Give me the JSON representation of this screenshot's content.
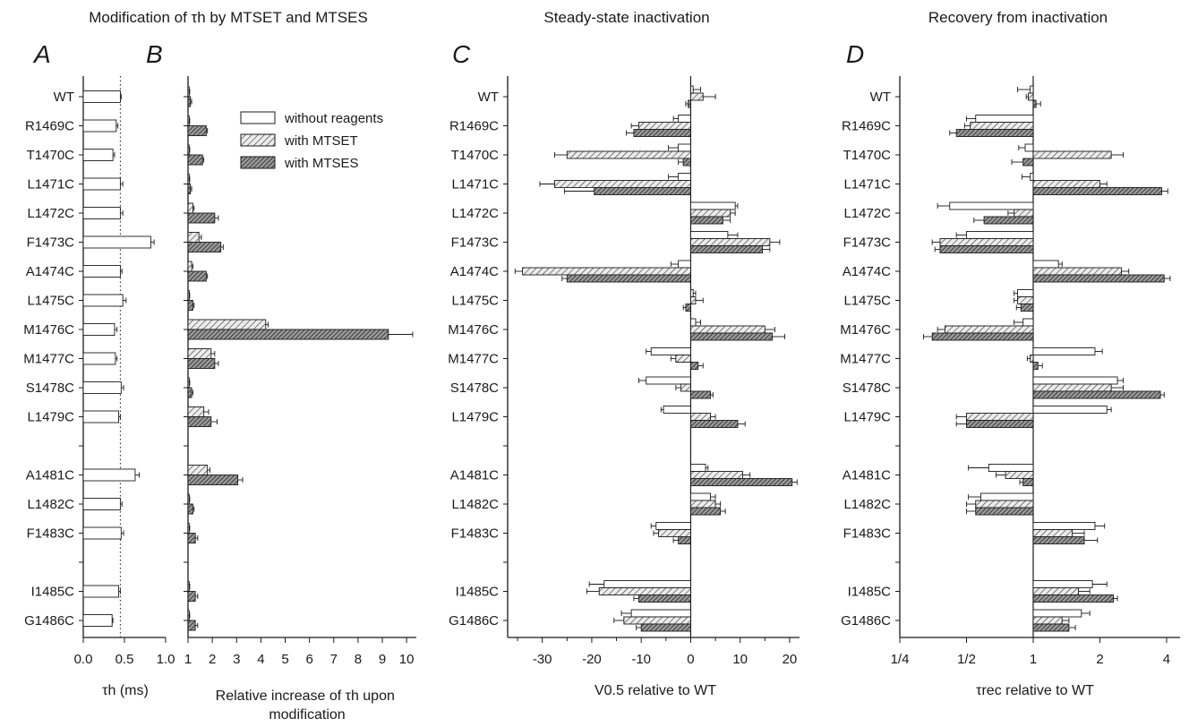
{
  "titles": {
    "ab": "Modification of τh by MTSET and MTSES",
    "c": "Steady-state inactivation",
    "d": "Recovery from inactivation"
  },
  "panels": [
    "A",
    "B",
    "C",
    "D"
  ],
  "legend": [
    "without reagents",
    "with MTSET",
    "with MTSES"
  ],
  "rows": [
    "WT",
    "R1469C",
    "T1470C",
    "L1471C",
    "L1472C",
    "F1473C",
    "A1474C",
    "L1475C",
    "M1476C",
    "M1477C",
    "S1478C",
    "L1479C",
    "",
    "A1481C",
    "L1482C",
    "F1483C",
    "",
    "I1485C",
    "G1486C"
  ],
  "axis_labels": {
    "a": "τh (ms)",
    "b": "Relative increase of τh upon modification",
    "c": "V0.5 relative to WT",
    "d": "τrec relative to WT"
  },
  "colors": {
    "ink": "#1a1a1a",
    "without": "#ffffff",
    "mtset": "#9a9a9a",
    "mtses": "#5e5e5e"
  },
  "chart_data": [
    {
      "id": "A",
      "type": "bar",
      "orientation": "horizontal",
      "xlabel": "τh (ms)",
      "xlim": [
        0,
        1.0
      ],
      "ticks": [
        "0.0",
        "0.5",
        "1.0"
      ],
      "tick_values": [
        0,
        0.5,
        1.0
      ],
      "reference_line": 0.45,
      "series": [
        {
          "values": [
            0.45,
            0.4,
            0.36,
            0.45,
            0.45,
            0.82,
            0.45,
            0.48,
            0.38,
            0.39,
            0.46,
            0.43,
            null,
            0.63,
            0.45,
            0.46,
            null,
            0.43,
            0.35
          ],
          "errors": [
            0.01,
            0.02,
            0.02,
            0.03,
            0.03,
            0.04,
            0.02,
            0.04,
            0.03,
            0.02,
            0.03,
            0.02,
            null,
            0.05,
            0.02,
            0.03,
            null,
            0.02,
            0.01
          ]
        }
      ]
    },
    {
      "id": "B",
      "type": "bar",
      "orientation": "horizontal",
      "xlabel": "Relative increase of τh upon modification",
      "xlim": [
        1,
        10.4
      ],
      "ticks": [
        "1",
        "2",
        "3",
        "4",
        "5",
        "6",
        "7",
        "8",
        "9",
        "10"
      ],
      "tick_values": [
        1,
        2,
        3,
        4,
        5,
        6,
        7,
        8,
        9,
        10
      ],
      "series": [
        {
          "name": "with MTSET",
          "values": [
            1.05,
            1.05,
            1.05,
            1.05,
            1.2,
            1.45,
            1.15,
            1.05,
            4.2,
            1.95,
            1.05,
            1.65,
            null,
            1.8,
            1.05,
            1.05,
            null,
            1.05,
            1.05
          ],
          "errors": [
            0.02,
            0.02,
            0.02,
            0.02,
            0.05,
            0.1,
            0.05,
            0.02,
            0.1,
            0.15,
            0.02,
            0.2,
            null,
            0.1,
            0.02,
            0.02,
            null,
            0.02,
            0.02
          ]
        },
        {
          "name": "with MTSES",
          "values": [
            1.1,
            1.75,
            1.6,
            1.1,
            2.1,
            2.35,
            1.75,
            1.2,
            9.25,
            2.1,
            1.15,
            1.95,
            null,
            3.05,
            1.2,
            1.3,
            null,
            1.3,
            1.3
          ],
          "errors": [
            0.05,
            0.05,
            0.05,
            0.05,
            0.15,
            0.1,
            0.05,
            0.05,
            1.0,
            0.15,
            0.05,
            0.25,
            null,
            0.2,
            0.05,
            0.1,
            null,
            0.1,
            0.1
          ]
        }
      ]
    },
    {
      "id": "C",
      "type": "bar",
      "orientation": "horizontal",
      "xlabel": "V0.5 relative to WT",
      "xlim": [
        -37,
        22
      ],
      "ticks": [
        "-30",
        "-20",
        "-10",
        "0",
        "10",
        "20"
      ],
      "tick_values": [
        -30,
        -20,
        -10,
        0,
        10,
        20
      ],
      "series": [
        {
          "name": "without reagents",
          "values": [
            0.5,
            -2.5,
            -2.5,
            -2.5,
            9,
            7.5,
            -2.5,
            0.5,
            1,
            -8,
            -9,
            -5.5,
            null,
            3,
            4,
            -7,
            null,
            -17.5,
            -12
          ],
          "errors": [
            1.5,
            1,
            2,
            2,
            0.5,
            2,
            1.5,
            0.5,
            1,
            1,
            1.5,
            0.5,
            null,
            0.5,
            1,
            1,
            null,
            3,
            2
          ]
        },
        {
          "name": "with MTSET",
          "values": [
            2.5,
            -10.5,
            -25,
            -27.5,
            8,
            16,
            -34,
            1,
            15,
            -3,
            -2,
            4,
            null,
            10.5,
            5,
            -6.5,
            null,
            -18.5,
            -13.5
          ],
          "errors": [
            2.5,
            1.5,
            2.5,
            3,
            1,
            2,
            1.5,
            1.5,
            2,
            1,
            1,
            1,
            null,
            1.5,
            1,
            1,
            null,
            2.5,
            2
          ]
        },
        {
          "name": "with MTSES",
          "values": [
            -0.5,
            -11.5,
            -1.5,
            -19.5,
            6.5,
            14.5,
            -25,
            -1,
            16.5,
            1.5,
            4,
            9.5,
            null,
            20.5,
            6,
            -2.5,
            null,
            -10.5,
            -10
          ],
          "errors": [
            0.5,
            1.5,
            1,
            6,
            1.5,
            1.5,
            1,
            0.5,
            2.5,
            1,
            0.5,
            1.5,
            null,
            1,
            1,
            1,
            null,
            1,
            1
          ]
        }
      ]
    },
    {
      "id": "D",
      "type": "bar",
      "orientation": "horizontal",
      "x_scale": "log2",
      "xlabel": "τrec relative to WT",
      "xlim": [
        0.25,
        4.6
      ],
      "ticks": [
        "1/4",
        "1/2",
        "1",
        "2",
        "4"
      ],
      "tick_values": [
        0.25,
        0.5,
        1,
        2,
        4
      ],
      "series": [
        {
          "name": "without reagents",
          "values": [
            0.97,
            0.55,
            0.92,
            0.97,
            0.42,
            0.5,
            1.3,
            0.85,
            0.9,
            1.9,
            2.4,
            2.15,
            null,
            0.63,
            0.58,
            1.9,
            null,
            1.85,
            1.65
          ],
          "errors": [
            0.12,
            0.05,
            0.06,
            0.08,
            0.05,
            0.05,
            0.05,
            0.03,
            0.08,
            0.15,
            0.15,
            0.1,
            null,
            0.12,
            0.07,
            0.2,
            null,
            0.3,
            0.15
          ]
        },
        {
          "name": "with MTSET",
          "values": [
            0.95,
            0.52,
            2.25,
            2.0,
            0.82,
            0.38,
            2.5,
            0.85,
            0.4,
            0.97,
            2.25,
            0.5,
            null,
            0.75,
            0.55,
            1.5,
            null,
            1.6,
            1.35
          ],
          "errors": [
            0.02,
            0.03,
            0.3,
            0.15,
            0.05,
            0.03,
            0.2,
            0.03,
            0.03,
            0.03,
            0.3,
            0.05,
            null,
            0.07,
            0.05,
            0.2,
            null,
            0.2,
            0.1
          ]
        },
        {
          "name": "with MTSES",
          "values": [
            1.03,
            0.45,
            0.9,
            3.8,
            0.6,
            0.38,
            3.9,
            0.88,
            0.35,
            1.05,
            3.75,
            0.5,
            null,
            0.9,
            0.55,
            1.7,
            null,
            2.3,
            1.45
          ],
          "errors": [
            0.05,
            0.03,
            0.1,
            0.25,
            0.06,
            0.02,
            0.25,
            0.04,
            0.03,
            0.05,
            0.15,
            0.05,
            null,
            0.03,
            0.05,
            0.25,
            null,
            0.1,
            0.1
          ]
        }
      ]
    }
  ]
}
